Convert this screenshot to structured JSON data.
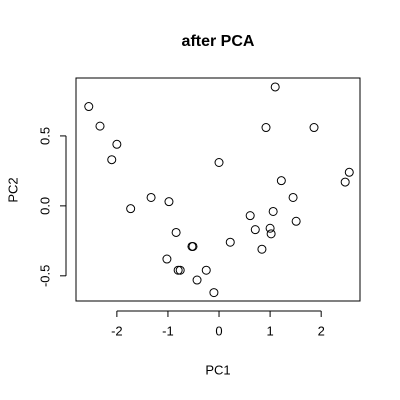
{
  "chart_data": {
    "type": "scatter",
    "title": "after PCA",
    "x_label": "PC1",
    "y_label": "PC2",
    "x": [
      -2.55,
      -2.33,
      -2.0,
      -2.1,
      -1.73,
      -1.33,
      -0.98,
      -0.84,
      -1.02,
      -0.8,
      -0.76,
      -0.51,
      -0.53,
      -0.43,
      -0.25,
      -0.1,
      0.0,
      0.22,
      0.61,
      0.71,
      0.84,
      1.0,
      1.02,
      1.06,
      0.92,
      1.1,
      1.22,
      1.45,
      1.51,
      1.86,
      2.47,
      2.55
    ],
    "y": [
      0.71,
      0.57,
      0.44,
      0.33,
      -0.02,
      0.06,
      0.03,
      -0.19,
      -0.38,
      -0.46,
      -0.46,
      -0.29,
      -0.29,
      -0.53,
      -0.46,
      -0.62,
      0.31,
      -0.26,
      -0.07,
      -0.17,
      -0.31,
      -0.16,
      -0.2,
      -0.04,
      0.56,
      0.85,
      0.18,
      0.06,
      -0.11,
      0.56,
      0.17,
      0.24
    ],
    "color": "#000000",
    "xlim": [
      -2.8,
      2.76
    ],
    "ylim": [
      -0.68,
      0.914
    ],
    "xticks": [
      -2,
      -1,
      0,
      1,
      2
    ],
    "yticks": [
      -0.5,
      {
        "value": 0,
        "label": "0.0"
      },
      0.5
    ]
  }
}
